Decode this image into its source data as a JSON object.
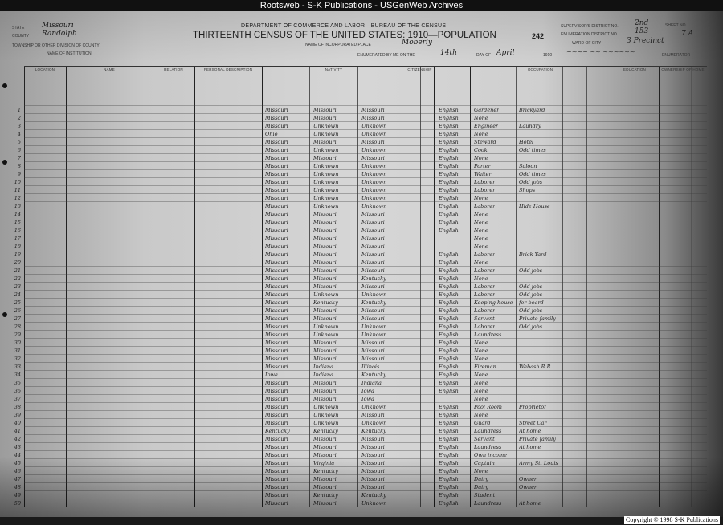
{
  "banner": "Rootsweb - S-K Publications - USGenWeb Archives",
  "header": {
    "department": "DEPARTMENT OF COMMERCE AND LABOR—BUREAU OF THE CENSUS",
    "title": "THIRTEENTH CENSUS OF THE UNITED STATES: 1910—POPULATION",
    "page_number": "242",
    "state_label": "State",
    "state": "Missouri",
    "county_label": "County",
    "county": "Randolph",
    "township_label": "Township or other division of county",
    "institution_label": "Name of institution",
    "place_label": "Name of incorporated place",
    "place": "Moberly",
    "enumerated_label": "Enumerated by me on the",
    "enumerated_day": "14th",
    "day_of_label": "day of",
    "month": "April",
    "year": "1910",
    "supervisor_label": "Supervisor's District No.",
    "supervisor": "2nd",
    "ed_label": "Enumeration District No.",
    "ed": "153",
    "sheet_label": "Sheet No.",
    "sheet": "7 A",
    "ward_label": "Ward of city",
    "ward": "3 Precinct",
    "enumerator_label": "Enumerator"
  },
  "columns": [
    "Location",
    "Name",
    "Relation",
    "Personal Description",
    "Nativity",
    "Citizenship",
    "",
    "Occupation",
    "",
    "",
    "Education",
    "Ownership of Home"
  ],
  "rows": [
    {
      "n": "1",
      "bp": "Missouri",
      "fbp": "Missouri",
      "mbp": "Missouri",
      "lang": "English",
      "occ": "Gardener",
      "ind": "Brickyard"
    },
    {
      "n": "2",
      "bp": "Missouri",
      "fbp": "Missouri",
      "mbp": "Missouri",
      "lang": "English",
      "occ": "None",
      "ind": ""
    },
    {
      "n": "3",
      "bp": "Missouri",
      "fbp": "Unknown",
      "mbp": "Unknown",
      "lang": "English",
      "occ": "Engineer",
      "ind": "Laundry"
    },
    {
      "n": "4",
      "bp": "Ohio",
      "fbp": "Unknown",
      "mbp": "Unknown",
      "lang": "English",
      "occ": "None",
      "ind": ""
    },
    {
      "n": "5",
      "bp": "Missouri",
      "fbp": "Missouri",
      "mbp": "Missouri",
      "lang": "English",
      "occ": "Steward",
      "ind": "Hotel"
    },
    {
      "n": "6",
      "bp": "Missouri",
      "fbp": "Unknown",
      "mbp": "Unknown",
      "lang": "English",
      "occ": "Cook",
      "ind": "Odd times"
    },
    {
      "n": "7",
      "bp": "Missouri",
      "fbp": "Missouri",
      "mbp": "Missouri",
      "lang": "English",
      "occ": "None",
      "ind": ""
    },
    {
      "n": "8",
      "bp": "Missouri",
      "fbp": "Unknown",
      "mbp": "Unknown",
      "lang": "English",
      "occ": "Porter",
      "ind": "Saloon"
    },
    {
      "n": "9",
      "bp": "Missouri",
      "fbp": "Unknown",
      "mbp": "Unknown",
      "lang": "English",
      "occ": "Waiter",
      "ind": "Odd times"
    },
    {
      "n": "10",
      "bp": "Missouri",
      "fbp": "Unknown",
      "mbp": "Unknown",
      "lang": "English",
      "occ": "Laborer",
      "ind": "Odd jobs"
    },
    {
      "n": "11",
      "bp": "Missouri",
      "fbp": "Unknown",
      "mbp": "Unknown",
      "lang": "English",
      "occ": "Laborer",
      "ind": "Shops"
    },
    {
      "n": "12",
      "bp": "Missouri",
      "fbp": "Unknown",
      "mbp": "Unknown",
      "lang": "English",
      "occ": "None",
      "ind": ""
    },
    {
      "n": "13",
      "bp": "Missouri",
      "fbp": "Unknown",
      "mbp": "Unknown",
      "lang": "English",
      "occ": "Laborer",
      "ind": "Hide House"
    },
    {
      "n": "14",
      "bp": "Missouri",
      "fbp": "Missouri",
      "mbp": "Missouri",
      "lang": "English",
      "occ": "None",
      "ind": ""
    },
    {
      "n": "15",
      "bp": "Missouri",
      "fbp": "Missouri",
      "mbp": "Missouri",
      "lang": "English",
      "occ": "None",
      "ind": ""
    },
    {
      "n": "16",
      "bp": "Missouri",
      "fbp": "Missouri",
      "mbp": "Missouri",
      "lang": "English",
      "occ": "None",
      "ind": ""
    },
    {
      "n": "17",
      "bp": "Missouri",
      "fbp": "Missouri",
      "mbp": "Missouri",
      "lang": "",
      "occ": "None",
      "ind": ""
    },
    {
      "n": "18",
      "bp": "Missouri",
      "fbp": "Missouri",
      "mbp": "Missouri",
      "lang": "",
      "occ": "None",
      "ind": ""
    },
    {
      "n": "19",
      "bp": "Missouri",
      "fbp": "Missouri",
      "mbp": "Missouri",
      "lang": "English",
      "occ": "Laborer",
      "ind": "Brick Yard"
    },
    {
      "n": "20",
      "bp": "Missouri",
      "fbp": "Missouri",
      "mbp": "Missouri",
      "lang": "English",
      "occ": "None",
      "ind": ""
    },
    {
      "n": "21",
      "bp": "Missouri",
      "fbp": "Missouri",
      "mbp": "Missouri",
      "lang": "English",
      "occ": "Laborer",
      "ind": "Odd jobs"
    },
    {
      "n": "22",
      "bp": "Missouri",
      "fbp": "Missouri",
      "mbp": "Kentucky",
      "lang": "English",
      "occ": "None",
      "ind": ""
    },
    {
      "n": "23",
      "bp": "Missouri",
      "fbp": "Missouri",
      "mbp": "Missouri",
      "lang": "English",
      "occ": "Laborer",
      "ind": "Odd jobs"
    },
    {
      "n": "24",
      "bp": "Missouri",
      "fbp": "Unknown",
      "mbp": "Unknown",
      "lang": "English",
      "occ": "Laborer",
      "ind": "Odd jobs"
    },
    {
      "n": "25",
      "bp": "Missouri",
      "fbp": "Kentucky",
      "mbp": "Kentucky",
      "lang": "English",
      "occ": "Keeping house",
      "ind": "for board"
    },
    {
      "n": "26",
      "bp": "Missouri",
      "fbp": "Missouri",
      "mbp": "Missouri",
      "lang": "English",
      "occ": "Laborer",
      "ind": "Odd jobs"
    },
    {
      "n": "27",
      "bp": "Missouri",
      "fbp": "Missouri",
      "mbp": "Missouri",
      "lang": "English",
      "occ": "Servant",
      "ind": "Private family"
    },
    {
      "n": "28",
      "bp": "Missouri",
      "fbp": "Unknown",
      "mbp": "Unknown",
      "lang": "English",
      "occ": "Laborer",
      "ind": "Odd jobs"
    },
    {
      "n": "29",
      "bp": "Missouri",
      "fbp": "Unknown",
      "mbp": "Unknown",
      "lang": "English",
      "occ": "Laundress",
      "ind": ""
    },
    {
      "n": "30",
      "bp": "Missouri",
      "fbp": "Missouri",
      "mbp": "Missouri",
      "lang": "English",
      "occ": "None",
      "ind": ""
    },
    {
      "n": "31",
      "bp": "Missouri",
      "fbp": "Missouri",
      "mbp": "Missouri",
      "lang": "English",
      "occ": "None",
      "ind": ""
    },
    {
      "n": "32",
      "bp": "Missouri",
      "fbp": "Missouri",
      "mbp": "Missouri",
      "lang": "English",
      "occ": "None",
      "ind": ""
    },
    {
      "n": "33",
      "bp": "Missouri",
      "fbp": "Indiana",
      "mbp": "Illinois",
      "lang": "English",
      "occ": "Fireman",
      "ind": "Wabash R.R."
    },
    {
      "n": "34",
      "bp": "Iowa",
      "fbp": "Indiana",
      "mbp": "Kentucky",
      "lang": "English",
      "occ": "None",
      "ind": ""
    },
    {
      "n": "35",
      "bp": "Missouri",
      "fbp": "Missouri",
      "mbp": "Indiana",
      "lang": "English",
      "occ": "None",
      "ind": ""
    },
    {
      "n": "36",
      "bp": "Missouri",
      "fbp": "Missouri",
      "mbp": "Iowa",
      "lang": "English",
      "occ": "None",
      "ind": ""
    },
    {
      "n": "37",
      "bp": "Missouri",
      "fbp": "Missouri",
      "mbp": "Iowa",
      "lang": "",
      "occ": "None",
      "ind": ""
    },
    {
      "n": "38",
      "bp": "Missouri",
      "fbp": "Unknown",
      "mbp": "Unknown",
      "lang": "English",
      "occ": "Pool Room",
      "ind": "Proprietor"
    },
    {
      "n": "39",
      "bp": "Missouri",
      "fbp": "Unknown",
      "mbp": "Missouri",
      "lang": "English",
      "occ": "None",
      "ind": ""
    },
    {
      "n": "40",
      "bp": "Missouri",
      "fbp": "Unknown",
      "mbp": "Unknown",
      "lang": "English",
      "occ": "Guard",
      "ind": "Street Car"
    },
    {
      "n": "41",
      "bp": "Kentucky",
      "fbp": "Kentucky",
      "mbp": "Kentucky",
      "lang": "English",
      "occ": "Laundress",
      "ind": "At home"
    },
    {
      "n": "42",
      "bp": "Missouri",
      "fbp": "Missouri",
      "mbp": "Missouri",
      "lang": "English",
      "occ": "Servant",
      "ind": "Private family"
    },
    {
      "n": "43",
      "bp": "Missouri",
      "fbp": "Missouri",
      "mbp": "Missouri",
      "lang": "English",
      "occ": "Laundress",
      "ind": "At home"
    },
    {
      "n": "44",
      "bp": "Missouri",
      "fbp": "Missouri",
      "mbp": "Missouri",
      "lang": "English",
      "occ": "Own income",
      "ind": ""
    },
    {
      "n": "45",
      "bp": "Missouri",
      "fbp": "Virginia",
      "mbp": "Missouri",
      "lang": "English",
      "occ": "Captain",
      "ind": "Army St. Louis"
    },
    {
      "n": "46",
      "bp": "Missouri",
      "fbp": "Kentucky",
      "mbp": "Missouri",
      "lang": "English",
      "occ": "None",
      "ind": ""
    },
    {
      "n": "47",
      "bp": "Missouri",
      "fbp": "Missouri",
      "mbp": "Missouri",
      "lang": "English",
      "occ": "Dairy",
      "ind": "Owner"
    },
    {
      "n": "48",
      "bp": "Missouri",
      "fbp": "Missouri",
      "mbp": "Missouri",
      "lang": "English",
      "occ": "Dairy",
      "ind": "Owner"
    },
    {
      "n": "49",
      "bp": "Missouri",
      "fbp": "Kentucky",
      "mbp": "Kentucky",
      "lang": "English",
      "occ": "Student",
      "ind": ""
    },
    {
      "n": "50",
      "bp": "Missouri",
      "fbp": "Missouri",
      "mbp": "Unknown",
      "lang": "English",
      "occ": "Laundress",
      "ind": "At home"
    }
  ],
  "copyright": "Copyright © 1998 S-K Publications"
}
